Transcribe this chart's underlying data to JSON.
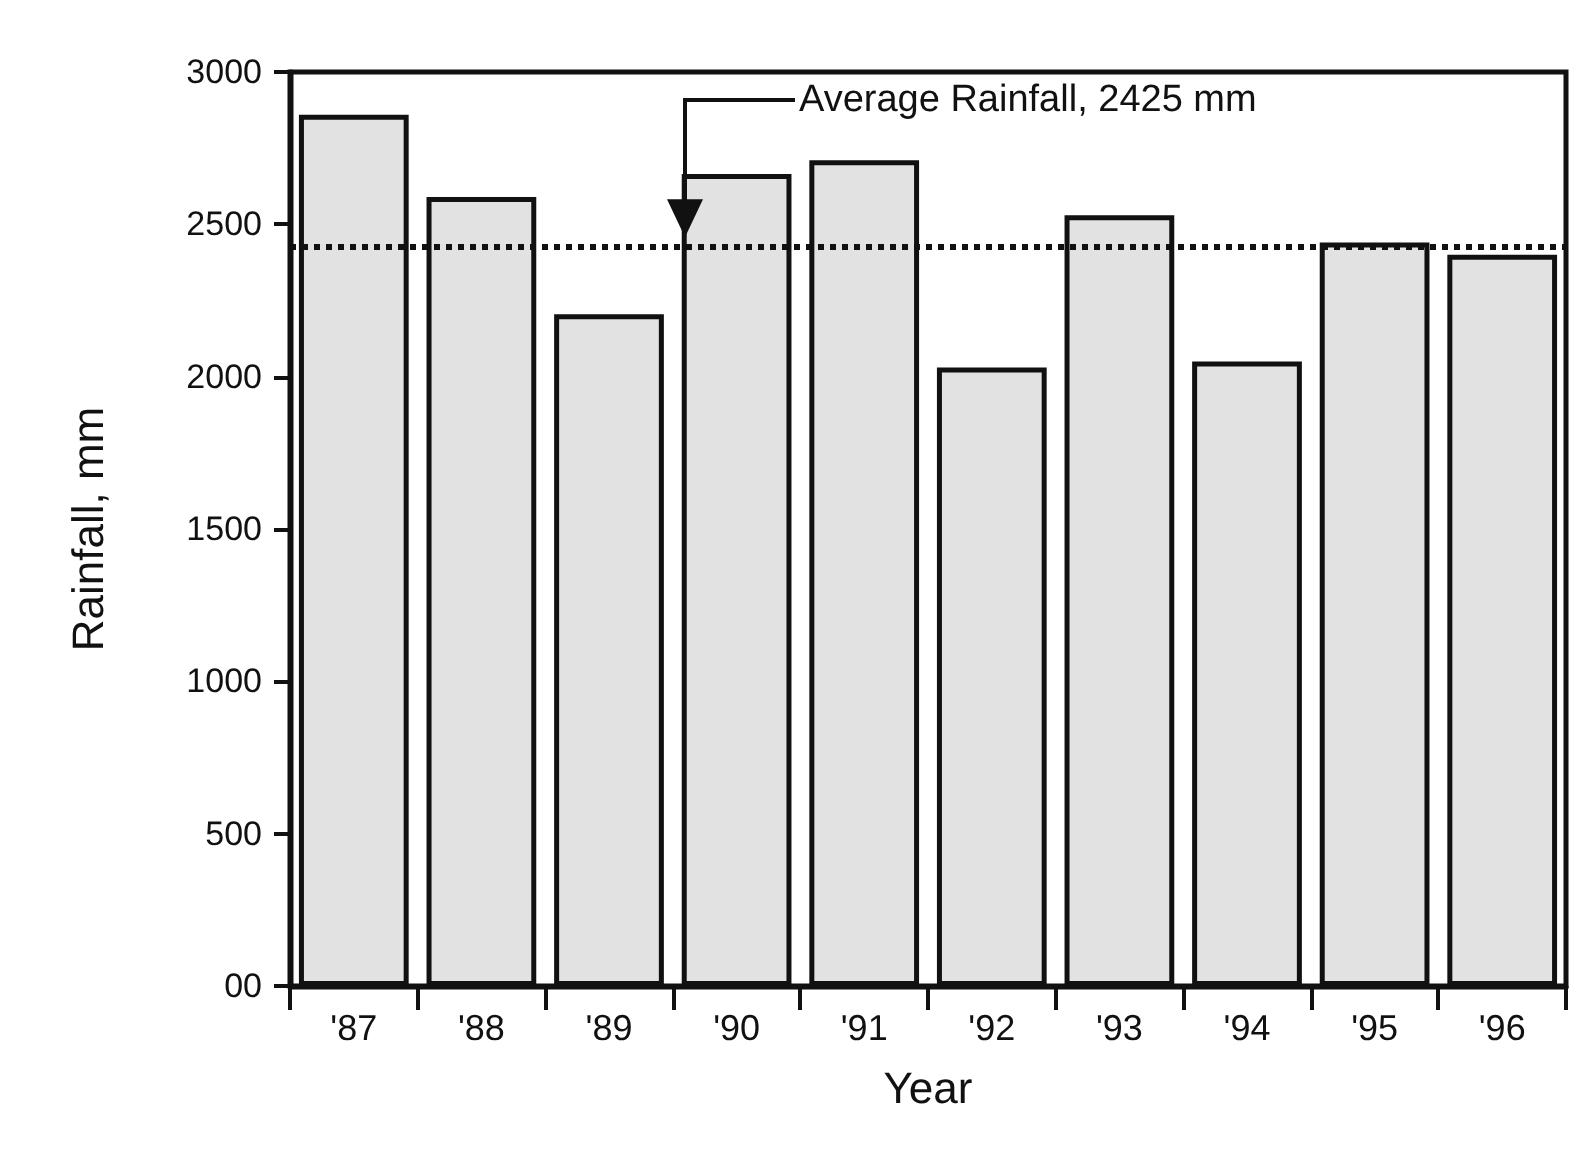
{
  "chart_data": {
    "type": "bar",
    "xlabel": "Year",
    "ylabel": "Rainfall, mm",
    "categories": [
      "'87",
      "'88",
      "'89",
      "'90",
      "'91",
      "'92",
      "'93",
      "'94",
      "'95",
      "'96"
    ],
    "values": [
      2860,
      2590,
      2205,
      2665,
      2710,
      2030,
      2530,
      2050,
      2440,
      2400
    ],
    "color": "#e2e2e2",
    "ylim": [
      0,
      3000
    ],
    "yticks": [
      {
        "value": 0,
        "label": "00"
      },
      500,
      1000,
      1500,
      2000,
      2500,
      3000
    ],
    "ref_lines": [
      {
        "axis": "y",
        "value": 2425,
        "label": "Average Rainfall, 2425 mm",
        "line_style": "dotted",
        "color": "#111111"
      }
    ],
    "grid": false
  }
}
